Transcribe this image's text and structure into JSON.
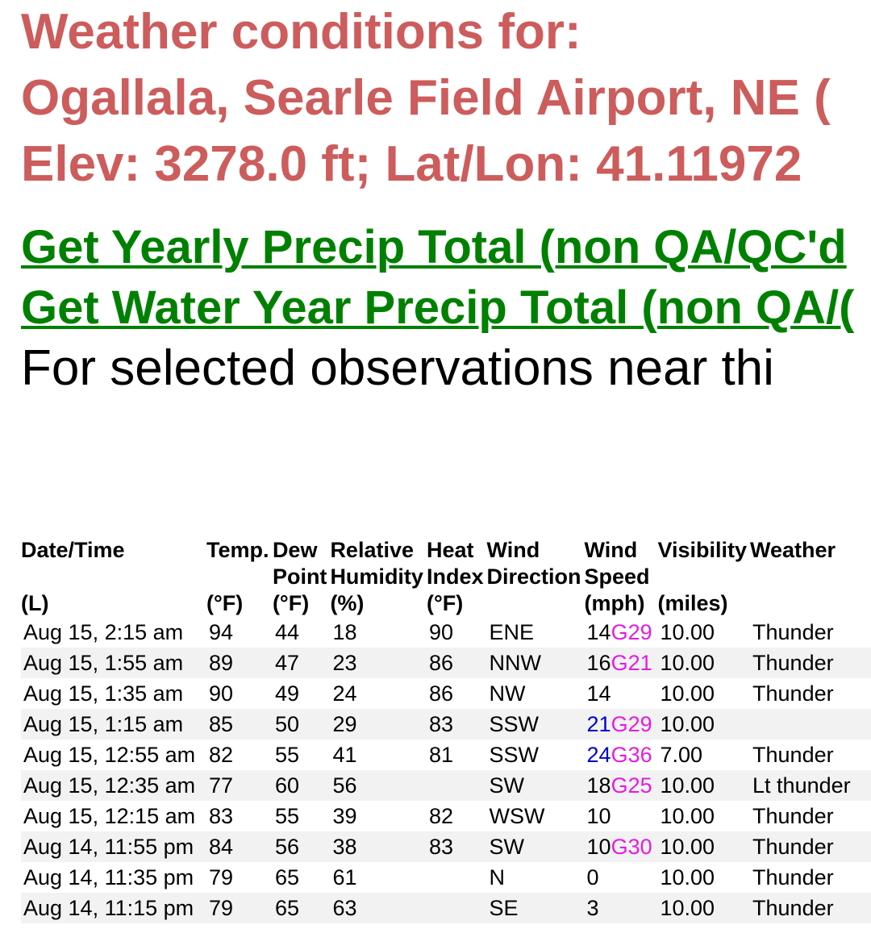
{
  "header": {
    "title_line1": "Weather conditions for:",
    "title_line2": "Ogallala, Searle Field Airport, NE (",
    "title_line3": "Elev: 3278.0 ft; Lat/Lon: 41.11972"
  },
  "links": {
    "yearly_precip": "Get Yearly Precip Total (non QA/QC'd ",
    "water_year_precip": "Get Water Year Precip Total (non QA/("
  },
  "intro_text": "For selected observations near thi",
  "colors": {
    "title": "#cd5c5c",
    "link": "#008000",
    "gust": "#e31ce3",
    "high_wind": "#0000cc",
    "row_stripe": "#f2f2f2"
  },
  "table": {
    "headers": [
      {
        "line1": "Date/Time",
        "line2": "",
        "unit": "(L)"
      },
      {
        "line1": "Temp.",
        "line2": "",
        "unit": "(°F)"
      },
      {
        "line1": "Dew",
        "line2": "Point",
        "unit": "(°F)"
      },
      {
        "line1": "Relative",
        "line2": "Humidity",
        "unit": "(%)"
      },
      {
        "line1": "Heat",
        "line2": "Index",
        "unit": "(°F)"
      },
      {
        "line1": "Wind",
        "line2": "Direction",
        "unit": ""
      },
      {
        "line1": "Wind",
        "line2": "Speed",
        "unit": "(mph)"
      },
      {
        "line1": "Visibility",
        "line2": "",
        "unit": "(miles)"
      },
      {
        "line1": "Weather",
        "line2": "",
        "unit": ""
      }
    ],
    "rows": [
      {
        "datetime": "Aug 15, 2:15 am",
        "temp": "94",
        "dew": "44",
        "rh": "18",
        "heat": "90",
        "dir": "ENE",
        "speed": "14",
        "speed_high": false,
        "gust": "G29",
        "vis": "10.00",
        "weather": "Thunder"
      },
      {
        "datetime": "Aug 15, 1:55 am",
        "temp": "89",
        "dew": "47",
        "rh": "23",
        "heat": "86",
        "dir": "NNW",
        "speed": "16",
        "speed_high": false,
        "gust": "G21",
        "vis": "10.00",
        "weather": "Thunder"
      },
      {
        "datetime": "Aug 15, 1:35 am",
        "temp": "90",
        "dew": "49",
        "rh": "24",
        "heat": "86",
        "dir": "NW",
        "speed": "14",
        "speed_high": false,
        "gust": "",
        "vis": "10.00",
        "weather": "Thunder"
      },
      {
        "datetime": "Aug 15, 1:15 am",
        "temp": "85",
        "dew": "50",
        "rh": "29",
        "heat": "83",
        "dir": "SSW",
        "speed": "21",
        "speed_high": true,
        "gust": "G29",
        "vis": "10.00",
        "weather": ""
      },
      {
        "datetime": "Aug 15, 12:55 am",
        "temp": "82",
        "dew": "55",
        "rh": "41",
        "heat": "81",
        "dir": "SSW",
        "speed": "24",
        "speed_high": true,
        "gust": "G36",
        "vis": "7.00",
        "weather": "Thunder"
      },
      {
        "datetime": "Aug 15, 12:35 am",
        "temp": "77",
        "dew": "60",
        "rh": "56",
        "heat": "",
        "dir": "SW",
        "speed": "18",
        "speed_high": false,
        "gust": "G25",
        "vis": "10.00",
        "weather": "Lt thunder"
      },
      {
        "datetime": "Aug 15, 12:15 am",
        "temp": "83",
        "dew": "55",
        "rh": "39",
        "heat": "82",
        "dir": "WSW",
        "speed": "10",
        "speed_high": false,
        "gust": "",
        "vis": "10.00",
        "weather": "Thunder"
      },
      {
        "datetime": "Aug 14, 11:55 pm",
        "temp": "84",
        "dew": "56",
        "rh": "38",
        "heat": "83",
        "dir": "SW",
        "speed": "10",
        "speed_high": false,
        "gust": "G30",
        "vis": "10.00",
        "weather": "Thunder"
      },
      {
        "datetime": "Aug 14, 11:35 pm",
        "temp": "79",
        "dew": "65",
        "rh": "61",
        "heat": "",
        "dir": "N",
        "speed": "0",
        "speed_high": false,
        "gust": "",
        "vis": "10.00",
        "weather": "Thunder"
      },
      {
        "datetime": "Aug 14, 11:15 pm",
        "temp": "79",
        "dew": "65",
        "rh": "63",
        "heat": "",
        "dir": "SE",
        "speed": "3",
        "speed_high": false,
        "gust": "",
        "vis": "10.00",
        "weather": "Thunder"
      }
    ]
  }
}
